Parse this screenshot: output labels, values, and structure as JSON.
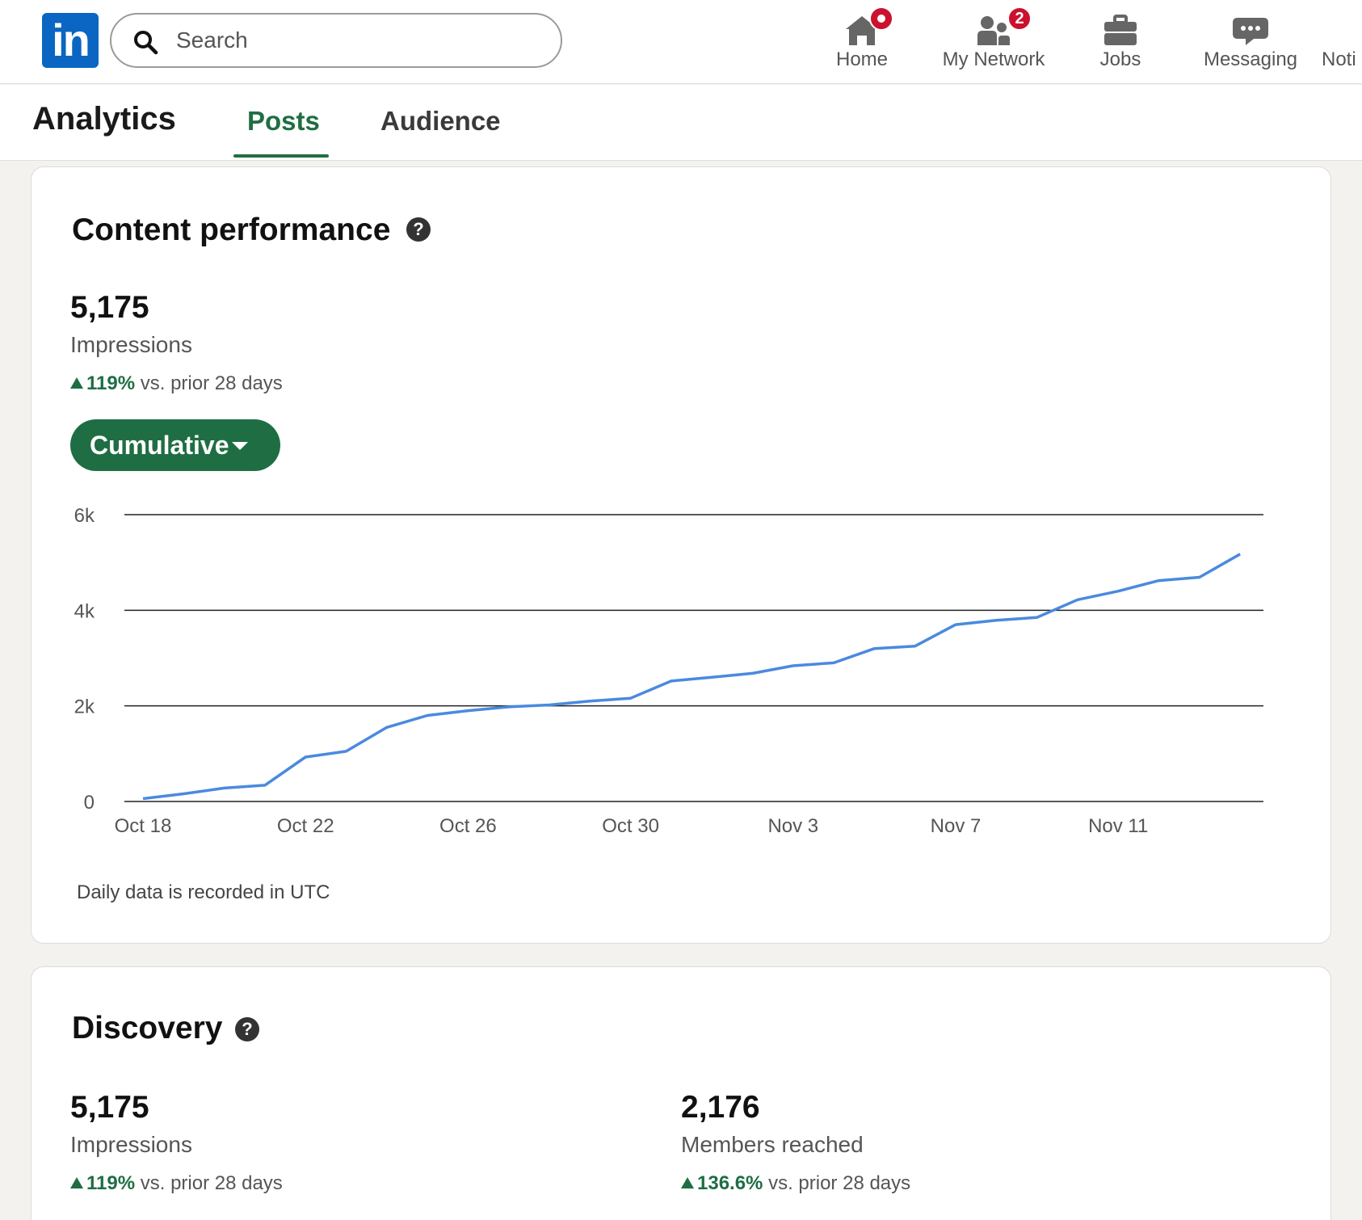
{
  "nav": {
    "logo_text": "in",
    "search_placeholder": "Search",
    "items": [
      {
        "label": "Home",
        "icon": "home-icon",
        "badge": ""
      },
      {
        "label": "My Network",
        "icon": "network-icon",
        "badge": "2"
      },
      {
        "label": "Jobs",
        "icon": "briefcase-icon",
        "badge": ""
      },
      {
        "label": "Messaging",
        "icon": "chat-icon",
        "badge": ""
      },
      {
        "label": "Noti",
        "icon": "bell-icon",
        "badge": ""
      }
    ],
    "badge_color": "#cb112d"
  },
  "subnav": {
    "title": "Analytics",
    "tabs": [
      {
        "label": "Posts",
        "active": true
      },
      {
        "label": "Audience",
        "active": false
      }
    ]
  },
  "content_performance": {
    "title": "Content performance",
    "impressions_value": "5,175",
    "impressions_label": "Impressions",
    "delta_pct": "119%",
    "delta_text": "vs. prior 28 days",
    "mode_button": "Cumulative",
    "note": "Daily data is recorded in UTC"
  },
  "discovery": {
    "title": "Discovery",
    "impressions_value": "5,175",
    "impressions_label": "Impressions",
    "impressions_delta_pct": "119%",
    "members_value": "2,176",
    "members_label": "Members reached",
    "members_delta_pct": "136.6%",
    "delta_text": "vs. prior 28 days"
  },
  "colors": {
    "accent_green": "#1f6e43",
    "line_blue": "#4a8ade",
    "linkedin_blue": "#0a66c2"
  },
  "chart_data": {
    "type": "line",
    "title": "",
    "xlabel": "",
    "ylabel": "",
    "ylim": [
      0,
      6000
    ],
    "y_ticks": [
      {
        "value": 0,
        "label": "0"
      },
      {
        "value": 2000,
        "label": "2k"
      },
      {
        "value": 4000,
        "label": "4k"
      },
      {
        "value": 6000,
        "label": "6k"
      }
    ],
    "x_tick_labels": [
      "Oct 18",
      "Oct 22",
      "Oct 26",
      "Oct 30",
      "Nov 3",
      "Nov 7",
      "Nov 11"
    ],
    "x_tick_index": [
      0,
      4,
      8,
      12,
      16,
      20,
      24
    ],
    "grid": true,
    "series": [
      {
        "values": [
          60,
          160,
          280,
          340,
          930,
          1050,
          1550,
          1800,
          1900,
          1980,
          2020,
          2100,
          2160,
          2520,
          2600,
          2680,
          2840,
          2900,
          3200,
          3250,
          3700,
          3790,
          3850,
          4220,
          4400,
          4620,
          4690,
          5175
        ]
      }
    ]
  }
}
